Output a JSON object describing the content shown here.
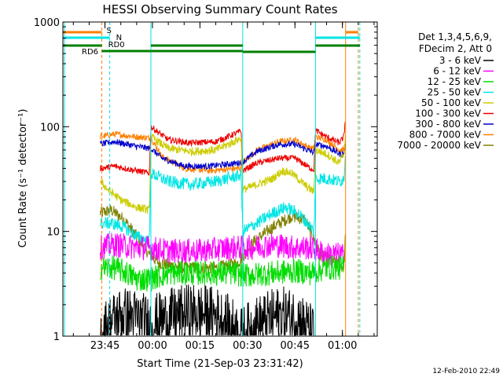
{
  "chart_data": {
    "type": "line",
    "title": "HESSI Observing Summary Count Rates",
    "xlabel": "Start Time (21-Sep-03 23:31:42)",
    "ylabel": "Count Rate (s⁻¹ detector⁻¹)",
    "yscale": "log",
    "ylim": [
      1,
      1000
    ],
    "yticks": [
      "1",
      "10",
      "100",
      "1000"
    ],
    "xlim": [
      "23:31:42",
      "01:11:00"
    ],
    "xticks": [
      "23:45",
      "00:00",
      "00:15",
      "00:30",
      "00:45",
      "01:00"
    ],
    "timestamp": "12-Feb-2010 22:49",
    "legend": {
      "position": "right",
      "header": [
        "Det 1,3,4,5,6,9,",
        "FDecim 2, Att 0"
      ],
      "entries": [
        {
          "label": "3 - 6 keV",
          "color": "#000000"
        },
        {
          "label": "6 - 12 keV",
          "color": "#ff00ff"
        },
        {
          "label": "12 - 25 keV",
          "color": "#00dd00"
        },
        {
          "label": "25 - 50 keV",
          "color": "#00e5e5"
        },
        {
          "label": "50 - 100 keV",
          "color": "#cccc00"
        },
        {
          "label": "100 - 300 keV",
          "color": "#ee0000"
        },
        {
          "label": "300 - 800 keV",
          "color": "#0000cc"
        },
        {
          "label": "800 - 7000 keV",
          "color": "#ff8000"
        },
        {
          "label": "7000 - 20000 keV",
          "color": "#808000"
        }
      ]
    },
    "flags": [
      {
        "label": "S",
        "color": "#ff8000"
      },
      {
        "label": "N",
        "color": "#00e5e5"
      },
      {
        "label": "RD0",
        "color": "#008000"
      },
      {
        "label": "RD6",
        "color": "#008000"
      }
    ],
    "series": [
      {
        "name": "7000 - 20000 keV",
        "color": "#808000",
        "noise": 0.06,
        "points": [
          [
            "23:43:30",
            15
          ],
          [
            "23:47:00",
            16
          ],
          [
            "23:51:00",
            13
          ],
          [
            "23:55:00",
            9
          ],
          [
            "23:59:00",
            6
          ],
          [
            "00:02:00",
            5
          ],
          [
            "00:10:00",
            4.5
          ],
          [
            "00:20:00",
            4.5
          ],
          [
            "00:27:00",
            5
          ],
          [
            "00:32:00",
            8
          ],
          [
            "00:38:00",
            11
          ],
          [
            "00:44:00",
            14
          ],
          [
            "00:48:00",
            13
          ],
          [
            "00:50:00",
            10
          ],
          [
            "00:53:00",
            6
          ],
          [
            "00:58:00",
            5
          ],
          [
            "01:00:30",
            4.5
          ],
          [
            "01:01:00",
            10
          ]
        ]
      },
      {
        "name": "800 - 7000 keV",
        "color": "#ff8000",
        "noise": 0.03,
        "points": [
          [
            "23:43:30",
            80
          ],
          [
            "23:48:00",
            85
          ],
          [
            "23:55:00",
            80
          ],
          [
            "23:59:00",
            78
          ],
          [
            "23:59:30",
            78
          ],
          [
            "00:03:00",
            52
          ],
          [
            "00:10:00",
            40
          ],
          [
            "00:18:00",
            38
          ],
          [
            "00:27:00",
            40
          ],
          [
            "00:28:00",
            40
          ],
          [
            "00:28:30",
            45
          ],
          [
            "00:33:00",
            60
          ],
          [
            "00:40:00",
            72
          ],
          [
            "00:45:00",
            75
          ],
          [
            "00:50:00",
            62
          ],
          [
            "00:51:00",
            62
          ],
          [
            "00:51:30",
            80
          ],
          [
            "00:55:00",
            75
          ],
          [
            "00:59:00",
            60
          ],
          [
            "01:00:30",
            60
          ],
          [
            "01:01:00",
            80
          ]
        ]
      },
      {
        "name": "300 - 800 keV",
        "color": "#0000cc",
        "noise": 0.03,
        "points": [
          [
            "23:43:30",
            68
          ],
          [
            "23:48:00",
            72
          ],
          [
            "23:55:00",
            65
          ],
          [
            "23:59:00",
            62
          ],
          [
            "23:59:30",
            62
          ],
          [
            "00:03:00",
            50
          ],
          [
            "00:10:00",
            42
          ],
          [
            "00:18:00",
            42
          ],
          [
            "00:27:00",
            45
          ],
          [
            "00:28:00",
            46
          ],
          [
            "00:28:30",
            46
          ],
          [
            "00:33:00",
            58
          ],
          [
            "00:40:00",
            68
          ],
          [
            "00:45:00",
            68
          ],
          [
            "00:50:00",
            58
          ],
          [
            "00:51:00",
            57
          ],
          [
            "00:51:30",
            68
          ],
          [
            "00:55:00",
            65
          ],
          [
            "00:59:00",
            55
          ],
          [
            "01:00:30",
            55
          ],
          [
            "01:01:00",
            70
          ]
        ]
      },
      {
        "name": "100 - 300 keV",
        "color": "#ee0000",
        "noise": 0.03,
        "points": [
          [
            "23:43:30",
            40
          ],
          [
            "23:48:00",
            42
          ],
          [
            "23:55:00",
            38
          ],
          [
            "23:59:00",
            36
          ],
          [
            "23:59:30",
            100
          ],
          [
            "00:05:00",
            75
          ],
          [
            "00:12:00",
            70
          ],
          [
            "00:20:00",
            72
          ],
          [
            "00:27:00",
            88
          ],
          [
            "00:28:00",
            92
          ],
          [
            "00:28:30",
            38
          ],
          [
            "00:33:00",
            45
          ],
          [
            "00:40:00",
            50
          ],
          [
            "00:45:00",
            50
          ],
          [
            "00:50:00",
            40
          ],
          [
            "00:51:00",
            39
          ],
          [
            "00:51:30",
            92
          ],
          [
            "00:55:00",
            80
          ],
          [
            "00:59:00",
            70
          ],
          [
            "01:00:30",
            80
          ],
          [
            "01:01:00",
            130
          ]
        ]
      },
      {
        "name": "50 - 100 keV",
        "color": "#cccc00",
        "noise": 0.04,
        "points": [
          [
            "23:43:30",
            30
          ],
          [
            "23:46:00",
            25
          ],
          [
            "23:50:00",
            20
          ],
          [
            "23:55:00",
            17
          ],
          [
            "23:59:00",
            16
          ],
          [
            "23:59:30",
            80
          ],
          [
            "00:05:00",
            62
          ],
          [
            "00:12:00",
            58
          ],
          [
            "00:20:00",
            60
          ],
          [
            "00:27:00",
            75
          ],
          [
            "00:28:00",
            78
          ],
          [
            "00:28:30",
            25
          ],
          [
            "00:33:00",
            28
          ],
          [
            "00:38:00",
            32
          ],
          [
            "00:41:00",
            38
          ],
          [
            "00:44:00",
            36
          ],
          [
            "00:48:00",
            28
          ],
          [
            "00:50:00",
            25
          ],
          [
            "00:51:00",
            24
          ],
          [
            "00:51:30",
            60
          ],
          [
            "00:55:00",
            55
          ],
          [
            "00:59:00",
            45
          ],
          [
            "01:00:30",
            55
          ],
          [
            "01:01:00",
            90
          ]
        ]
      },
      {
        "name": "25 - 50 keV",
        "color": "#00e5e5",
        "noise": 0.06,
        "points": [
          [
            "23:43:30",
            12
          ],
          [
            "23:47:00",
            12
          ],
          [
            "23:51:00",
            11
          ],
          [
            "23:55:00",
            9
          ],
          [
            "23:59:00",
            8
          ],
          [
            "23:59:30",
            36
          ],
          [
            "00:05:00",
            30
          ],
          [
            "00:12:00",
            28
          ],
          [
            "00:20:00",
            30
          ],
          [
            "00:27:00",
            34
          ],
          [
            "00:28:00",
            35
          ],
          [
            "00:28:30",
            10
          ],
          [
            "00:33:00",
            12
          ],
          [
            "00:38:00",
            15
          ],
          [
            "00:42:00",
            17
          ],
          [
            "00:46:00",
            15
          ],
          [
            "00:50:00",
            11
          ],
          [
            "00:51:00",
            10
          ],
          [
            "00:51:30",
            32
          ],
          [
            "00:55:00",
            32
          ],
          [
            "00:59:00",
            30
          ],
          [
            "01:00:30",
            32
          ],
          [
            "01:01:00",
            60
          ]
        ]
      },
      {
        "name": "6 - 12 keV",
        "color": "#ff00ff",
        "noise": 0.12,
        "points": [
          [
            "23:43:30",
            7
          ],
          [
            "23:48:00",
            7.5
          ],
          [
            "23:55:00",
            7
          ],
          [
            "23:59:00",
            7
          ],
          [
            "00:05:00",
            6.5
          ],
          [
            "00:15:00",
            6.5
          ],
          [
            "00:25:00",
            7
          ],
          [
            "00:30:00",
            7
          ],
          [
            "00:38:00",
            7.5
          ],
          [
            "00:45:00",
            7
          ],
          [
            "00:50:00",
            7
          ],
          [
            "00:55:00",
            6
          ],
          [
            "01:00:00",
            6
          ],
          [
            "01:00:30",
            5
          ]
        ]
      },
      {
        "name": "12 - 25 keV",
        "color": "#00dd00",
        "noise": 0.12,
        "points": [
          [
            "23:43:30",
            4.5
          ],
          [
            "23:48:00",
            4.5
          ],
          [
            "23:52:00",
            4
          ],
          [
            "23:55:00",
            3.5
          ],
          [
            "23:59:00",
            3.5
          ],
          [
            "00:05:00",
            4
          ],
          [
            "00:15:00",
            4
          ],
          [
            "00:25:00",
            4
          ],
          [
            "00:30:00",
            3.8
          ],
          [
            "00:38:00",
            4
          ],
          [
            "00:45:00",
            4.2
          ],
          [
            "00:50:00",
            4
          ],
          [
            "00:55:00",
            4.5
          ],
          [
            "01:00:30",
            4.5
          ]
        ]
      },
      {
        "name": "3 - 6 keV",
        "color": "#000000",
        "noise": 0.28,
        "points": [
          [
            "23:43:30",
            1.0
          ],
          [
            "23:46:00",
            1.3
          ],
          [
            "23:50:00",
            1.6
          ],
          [
            "23:55:00",
            1.5
          ],
          [
            "23:59:00",
            1.3
          ],
          [
            "00:05:00",
            1.5
          ],
          [
            "00:12:00",
            1.7
          ],
          [
            "00:20:00",
            1.6
          ],
          [
            "00:26:00",
            1.2
          ],
          [
            "00:28:00",
            1.0
          ],
          [
            "00:33:00",
            1.3
          ],
          [
            "00:40:00",
            1.6
          ],
          [
            "00:46:00",
            1.5
          ],
          [
            "00:50:00",
            1.1
          ],
          [
            "00:51:00",
            1.0
          ]
        ]
      }
    ]
  }
}
